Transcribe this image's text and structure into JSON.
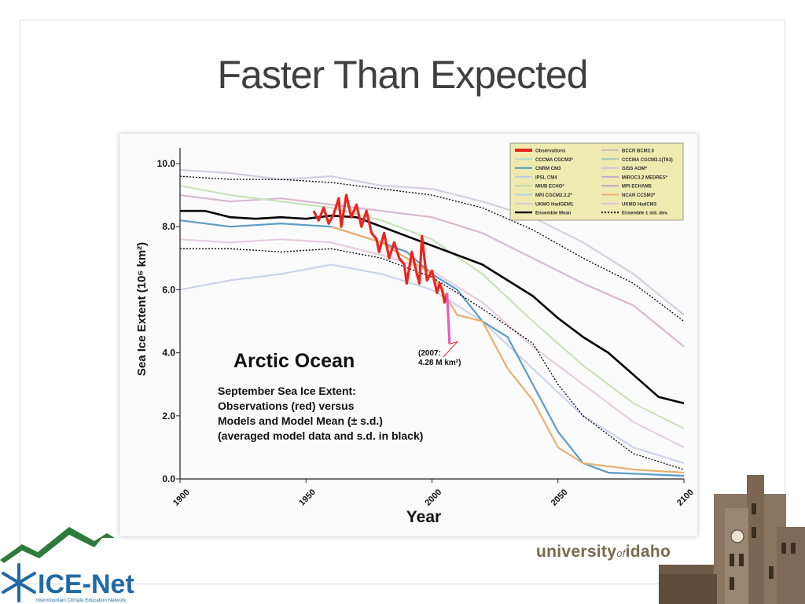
{
  "slide": {
    "title": "Faster Than Expected",
    "university": {
      "main1": "university",
      "of": "of",
      "main2": "idaho"
    },
    "logo": {
      "name": "ICE-Net",
      "subtitle": "Intermountain Climate Education Network"
    }
  },
  "chart_data": {
    "type": "line",
    "ylabel": "Sea Ice Extent (10⁶ km²)",
    "xlabel": "Year",
    "xlim": [
      1900,
      2100
    ],
    "ylim": [
      0,
      10.5
    ],
    "xticks": [
      "1900",
      "1950",
      "2000",
      "2050",
      "2100"
    ],
    "yticks": [
      "0.0",
      "2.0",
      "4.0",
      "6.0",
      "8.0",
      "10.0"
    ],
    "annotation_title": "Arctic Ocean",
    "annotation_lines": [
      "September Sea Ice Extent:",
      "Observations (red) versus",
      "Models and Model Mean (± s.d.)",
      "(averaged model data and s.d. in black)"
    ],
    "callout": {
      "line1": "(2007:",
      "line2": "4.28 M km²)",
      "x": 2007,
      "y": 4.28
    },
    "legend": {
      "position": "top-right",
      "entries": [
        {
          "name": "Observations",
          "color": "#e8261e"
        },
        {
          "name": "CCCMA CGCM3*",
          "color": "#b3d8c8"
        },
        {
          "name": "CNRM CM3",
          "color": "#4a8fc0"
        },
        {
          "name": "IPSL CM4",
          "color": "#bcc8e8"
        },
        {
          "name": "MIUB ECHO*",
          "color": "#bcdcb0"
        },
        {
          "name": "MRI CGCM2.3.2*",
          "color": "#a8d8e0"
        },
        {
          "name": "UKMO HadGEM1",
          "color": "#d8c8e0"
        },
        {
          "name": "Ensemble Mean",
          "color": "#000000"
        },
        {
          "name": "BCCR BCM2.0",
          "color": "#d0b8c8"
        },
        {
          "name": "CCCMA CGCM3.1(T63)",
          "color": "#a8c8c0"
        },
        {
          "name": "GISS AOM*",
          "color": "#c8c0d8"
        },
        {
          "name": "MIROC3.2 MEDRES*",
          "color": "#c8a8c8"
        },
        {
          "name": "MPI ECHAM5",
          "color": "#c0a0c8"
        },
        {
          "name": "NCAR CCSM3*",
          "color": "#e8b070"
        },
        {
          "name": "UKMO HadCM3",
          "color": "#e0c0d8"
        },
        {
          "name": "Ensemble ± std. dev.",
          "color": "#000000"
        }
      ]
    },
    "series": [
      {
        "name": "Observations",
        "color": "#e8261e",
        "points": [
          [
            1953,
            8.5
          ],
          [
            1955,
            8.2
          ],
          [
            1957,
            8.6
          ],
          [
            1959,
            8.1
          ],
          [
            1961,
            8.4
          ],
          [
            1963,
            8.9
          ],
          [
            1964,
            8.0
          ],
          [
            1966,
            9.0
          ],
          [
            1968,
            8.3
          ],
          [
            1970,
            8.7
          ],
          [
            1972,
            8.0
          ],
          [
            1974,
            8.5
          ],
          [
            1976,
            7.8
          ],
          [
            1978,
            7.6
          ],
          [
            1979,
            7.2
          ],
          [
            1981,
            7.8
          ],
          [
            1983,
            7.0
          ],
          [
            1985,
            7.5
          ],
          [
            1987,
            7.0
          ],
          [
            1989,
            6.8
          ],
          [
            1990,
            6.2
          ],
          [
            1992,
            7.2
          ],
          [
            1994,
            6.5
          ],
          [
            1995,
            6.2
          ],
          [
            1996,
            7.7
          ],
          [
            1998,
            6.3
          ],
          [
            2000,
            6.6
          ],
          [
            2002,
            5.9
          ],
          [
            2003,
            6.2
          ],
          [
            2004,
            6.0
          ],
          [
            2005,
            5.6
          ],
          [
            2006,
            5.9
          ]
        ]
      },
      {
        "name": "Observations 2007",
        "color": "#e060c0",
        "points": [
          [
            2006,
            5.9
          ],
          [
            2007,
            4.28
          ]
        ]
      },
      {
        "name": "Ensemble Mean",
        "color": "#000000",
        "points": [
          [
            1900,
            8.5
          ],
          [
            1910,
            8.5
          ],
          [
            1920,
            8.3
          ],
          [
            1930,
            8.25
          ],
          [
            1940,
            8.3
          ],
          [
            1950,
            8.25
          ],
          [
            1960,
            8.35
          ],
          [
            1970,
            8.3
          ],
          [
            1980,
            8.0
          ],
          [
            1990,
            7.7
          ],
          [
            2000,
            7.4
          ],
          [
            2010,
            7.1
          ],
          [
            2020,
            6.8
          ],
          [
            2030,
            6.3
          ],
          [
            2040,
            5.8
          ],
          [
            2050,
            5.1
          ],
          [
            2060,
            4.5
          ],
          [
            2070,
            4.0
          ],
          [
            2080,
            3.3
          ],
          [
            2090,
            2.6
          ],
          [
            2100,
            2.4
          ]
        ]
      },
      {
        "name": "Ensemble + std. dev.",
        "color": "#000000",
        "points": [
          [
            1900,
            9.6
          ],
          [
            1920,
            9.5
          ],
          [
            1940,
            9.5
          ],
          [
            1960,
            9.4
          ],
          [
            1980,
            9.2
          ],
          [
            2000,
            9.0
          ],
          [
            2020,
            8.6
          ],
          [
            2040,
            7.9
          ],
          [
            2060,
            7.0
          ],
          [
            2080,
            6.2
          ],
          [
            2100,
            5.0
          ]
        ]
      },
      {
        "name": "Ensemble - std. dev.",
        "color": "#000000",
        "points": [
          [
            1900,
            7.3
          ],
          [
            1920,
            7.3
          ],
          [
            1940,
            7.2
          ],
          [
            1960,
            7.3
          ],
          [
            1980,
            7.0
          ],
          [
            2000,
            6.4
          ],
          [
            2020,
            5.4
          ],
          [
            2040,
            4.3
          ],
          [
            2050,
            3.0
          ],
          [
            2060,
            2.0
          ],
          [
            2080,
            0.8
          ],
          [
            2100,
            0.3
          ]
        ]
      },
      {
        "name": "CNRM CM3",
        "color": "#5a9cc8",
        "points": [
          [
            1900,
            8.2
          ],
          [
            1920,
            8.0
          ],
          [
            1940,
            8.1
          ],
          [
            1960,
            8.0
          ],
          [
            1980,
            7.5
          ],
          [
            1990,
            7.2
          ],
          [
            2000,
            6.5
          ],
          [
            2010,
            6.0
          ],
          [
            2020,
            5.0
          ],
          [
            2030,
            4.5
          ],
          [
            2040,
            3.0
          ],
          [
            2050,
            1.5
          ],
          [
            2060,
            0.5
          ],
          [
            2070,
            0.2
          ],
          [
            2100,
            0.1
          ]
        ]
      },
      {
        "name": "NCAR CCSM3*",
        "color": "#e8b070",
        "points": [
          [
            1960,
            8.0
          ],
          [
            1980,
            7.5
          ],
          [
            2000,
            6.5
          ],
          [
            2010,
            5.2
          ],
          [
            2020,
            5.0
          ],
          [
            2030,
            3.5
          ],
          [
            2040,
            2.5
          ],
          [
            2050,
            1.0
          ],
          [
            2060,
            0.5
          ],
          [
            2080,
            0.3
          ],
          [
            2100,
            0.2
          ]
        ]
      },
      {
        "name": "GISS AOM*",
        "color": "#d8cde0",
        "points": [
          [
            1900,
            9.8
          ],
          [
            1920,
            9.7
          ],
          [
            1940,
            9.5
          ],
          [
            1960,
            9.6
          ],
          [
            1980,
            9.3
          ],
          [
            2000,
            9.2
          ],
          [
            2020,
            8.8
          ],
          [
            2040,
            8.3
          ],
          [
            2060,
            7.5
          ],
          [
            2080,
            6.5
          ],
          [
            2100,
            5.2
          ]
        ]
      },
      {
        "name": "MIROC3.2 MEDRES*",
        "color": "#d8b8d0",
        "points": [
          [
            1900,
            9.0
          ],
          [
            1920,
            8.8
          ],
          [
            1940,
            8.9
          ],
          [
            1960,
            8.7
          ],
          [
            1980,
            8.5
          ],
          [
            2000,
            8.3
          ],
          [
            2020,
            7.8
          ],
          [
            2040,
            7.0
          ],
          [
            2060,
            6.2
          ],
          [
            2080,
            5.5
          ],
          [
            2100,
            4.2
          ]
        ]
      },
      {
        "name": "IPSL CM4",
        "color": "#ccd4ec",
        "points": [
          [
            1900,
            6.0
          ],
          [
            1920,
            6.3
          ],
          [
            1940,
            6.5
          ],
          [
            1960,
            6.8
          ],
          [
            1980,
            6.5
          ],
          [
            2000,
            6.0
          ],
          [
            2020,
            5.0
          ],
          [
            2040,
            3.5
          ],
          [
            2060,
            2.0
          ],
          [
            2080,
            1.0
          ],
          [
            2100,
            0.5
          ]
        ]
      },
      {
        "name": "MIUB ECHO*",
        "color": "#c8e2bc",
        "points": [
          [
            1900,
            9.3
          ],
          [
            1920,
            9.0
          ],
          [
            1940,
            8.8
          ],
          [
            1960,
            8.6
          ],
          [
            1980,
            8.2
          ],
          [
            2000,
            7.6
          ],
          [
            2020,
            6.5
          ],
          [
            2040,
            5.0
          ],
          [
            2060,
            3.6
          ],
          [
            2080,
            2.4
          ],
          [
            2100,
            1.6
          ]
        ]
      },
      {
        "name": "UKMO HadCM3",
        "color": "#e6cce0",
        "points": [
          [
            1900,
            7.6
          ],
          [
            1920,
            7.5
          ],
          [
            1940,
            7.6
          ],
          [
            1960,
            7.5
          ],
          [
            1980,
            7.1
          ],
          [
            2000,
            6.6
          ],
          [
            2020,
            5.6
          ],
          [
            2040,
            4.2
          ],
          [
            2060,
            3.0
          ],
          [
            2080,
            1.8
          ],
          [
            2100,
            1.0
          ]
        ]
      }
    ]
  }
}
